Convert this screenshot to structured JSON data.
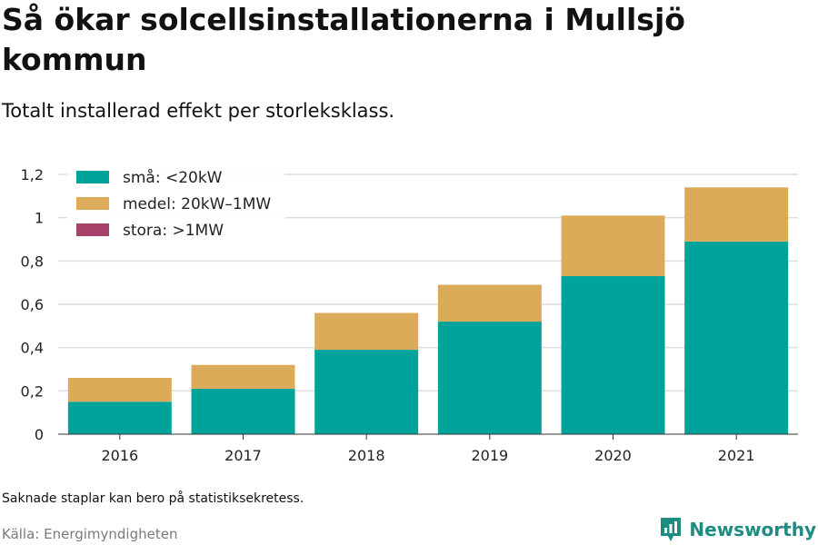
{
  "title": "Så ökar solcellsinstallationerna i Mullsjö kommun",
  "subtitle": "Totalt installerad effekt per storleksklass.",
  "note": "Saknade staplar kan bero på statistiksekretess.",
  "source": "Källa: Energimyndigheten",
  "brand": "Newsworthy",
  "colors": {
    "small": "#00a39a",
    "medium": "#dcab5a",
    "large": "#a8446c",
    "grid": "#dedede",
    "brand": "#1f8c84"
  },
  "chart_data": {
    "type": "bar",
    "stacked": true,
    "categories": [
      "2016",
      "2017",
      "2018",
      "2019",
      "2020",
      "2021"
    ],
    "series": [
      {
        "name": "små: <20kW",
        "color": "#00a39a",
        "values": [
          0.15,
          0.21,
          0.39,
          0.52,
          0.73,
          0.89
        ]
      },
      {
        "name": "medel: 20kW–1MW",
        "color": "#dcab5a",
        "values": [
          0.11,
          0.11,
          0.17,
          0.17,
          0.28,
          0.25
        ]
      },
      {
        "name": "stora: >1MW",
        "color": "#a8446c",
        "values": [
          0,
          0,
          0,
          0,
          0,
          0
        ]
      }
    ],
    "yticks": [
      0,
      0.2,
      0.4,
      0.6,
      0.8,
      1,
      1.2
    ],
    "ytick_labels": [
      "0",
      "0,2",
      "0,4",
      "0,6",
      "0,8",
      "1",
      "1,2"
    ],
    "ylim": [
      0,
      1.2
    ],
    "legend_position": "top-left",
    "grid": true
  }
}
